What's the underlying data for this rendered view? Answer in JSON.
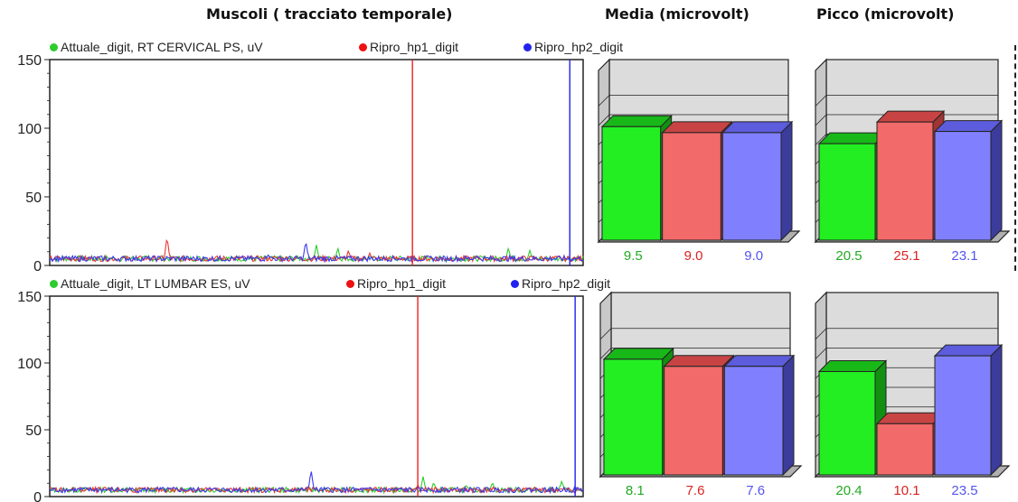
{
  "headers": {
    "trace": "Muscoli ( tracciato temporale)",
    "mean": "Media (microvolt)",
    "peak": "Picco (microvolt)"
  },
  "colors": {
    "green": "#2ecc2e",
    "red": "#ee3333",
    "blue": "#3a3aee",
    "bar_green": "#22ee22",
    "bar_red": "#f26a6a",
    "bar_blue": "#8080ff",
    "label_green": "#22aa22",
    "label_red": "#dd2222",
    "label_blue": "#5555ee"
  },
  "panels": [
    {
      "legend": {
        "current": "Attuale_digit, RT CERVICAL PS, uV",
        "hp1": "Ripro_hp1_digit",
        "hp2": "Ripro_hp2_digit"
      }
    },
    {
      "legend": {
        "current": "Attuale_digit, LT LUMBAR ES, uV",
        "hp1": "Ripro_hp1_digit",
        "hp2": "Ripro_hp2_digit"
      }
    }
  ],
  "chart_data": [
    {
      "type": "line",
      "title": "",
      "ylim": [
        0,
        150
      ],
      "yticks": [
        0,
        50,
        100,
        150
      ],
      "x": [
        0,
        100
      ],
      "markers": {
        "hp1": 68,
        "hp2": 97.5
      },
      "series": [
        {
          "name": "Attuale_digit, RT CERVICAL PS, uV",
          "color": "green",
          "spikes": [
            [
              50,
              12
            ],
            [
              54,
              10
            ],
            [
              86,
              10
            ],
            [
              90,
              8
            ]
          ]
        },
        {
          "name": "Ripro_hp1_digit",
          "color": "red",
          "spikes": [
            [
              22,
              18
            ],
            [
              56,
              8
            ],
            [
              60,
              6
            ]
          ]
        },
        {
          "name": "Ripro_hp2_digit",
          "color": "blue",
          "spikes": [
            [
              48,
              15
            ],
            [
              41,
              5
            ],
            [
              80,
              4
            ]
          ]
        }
      ]
    },
    {
      "type": "line",
      "title": "",
      "ylim": [
        0,
        150
      ],
      "yticks": [
        0,
        50,
        100,
        150
      ],
      "x": [
        0,
        100
      ],
      "markers": {
        "hp1": 69,
        "hp2": 98.5
      },
      "series": [
        {
          "name": "Attuale_digit, LT LUMBAR ES, uV",
          "color": "green",
          "spikes": [
            [
              70,
              12
            ],
            [
              72,
              8
            ],
            [
              78,
              6
            ],
            [
              83,
              8
            ],
            [
              96,
              9
            ]
          ]
        },
        {
          "name": "Ripro_hp1_digit",
          "color": "red",
          "spikes": [
            [
              69,
              6
            ],
            [
              74,
              4
            ]
          ]
        },
        {
          "name": "Ripro_hp2_digit",
          "color": "blue",
          "spikes": [
            [
              49,
              17
            ],
            [
              69,
              4
            ]
          ]
        }
      ]
    },
    {
      "type": "bar",
      "title": "Media (microvolt)",
      "categories": [
        "Attuale_digit",
        "Ripro_hp1_digit",
        "Ripro_hp2_digit"
      ],
      "values": [
        9.5,
        9.0,
        9.0
      ],
      "labels": [
        "9.5",
        "9.0",
        "9.0"
      ],
      "ylim": [
        0,
        13
      ]
    },
    {
      "type": "bar",
      "title": "Picco (microvolt)",
      "categories": [
        "Attuale_digit",
        "Ripro_hp1_digit",
        "Ripro_hp2_digit"
      ],
      "values": [
        20.5,
        25.1,
        23.1
      ],
      "labels": [
        "20.5",
        "25.1",
        "23.1"
      ],
      "ylim": [
        0,
        33
      ]
    },
    {
      "type": "bar",
      "title": "Media (microvolt)",
      "categories": [
        "Attuale_digit",
        "Ripro_hp1_digit",
        "Ripro_hp2_digit"
      ],
      "values": [
        8.1,
        7.6,
        7.6
      ],
      "labels": [
        "8.1",
        "7.6",
        "7.6"
      ],
      "ylim": [
        0,
        11
      ]
    },
    {
      "type": "bar",
      "title": "Picco (microvolt)",
      "categories": [
        "Attuale_digit",
        "Ripro_hp1_digit",
        "Ripro_hp2_digit"
      ],
      "values": [
        20.4,
        10.1,
        23.5
      ],
      "labels": [
        "20.4",
        "10.1",
        "23.5"
      ],
      "ylim": [
        0,
        31
      ]
    }
  ]
}
